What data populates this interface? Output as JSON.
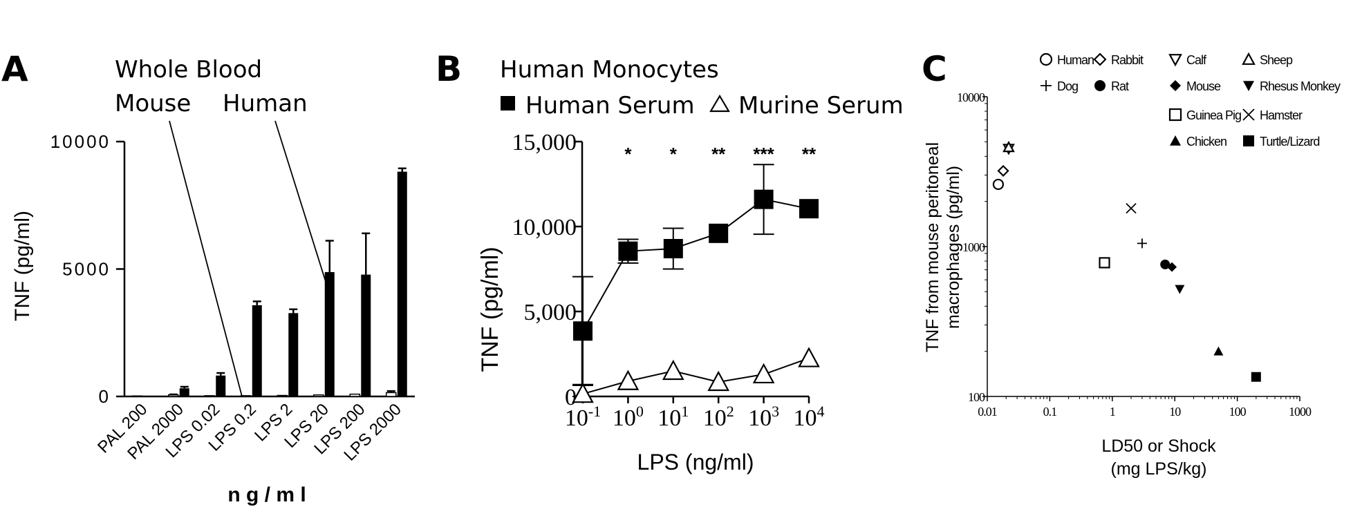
{
  "panels": {
    "A": {
      "letter": "A",
      "group_label": "Whole Blood",
      "mouse_label": "Mouse",
      "human_label": "Human",
      "ylabel": "TNF (pg/ml)",
      "xlabel": "n g / m l"
    },
    "B": {
      "letter": "B",
      "title": "Human Monocytes",
      "legend_human": "Human Serum",
      "legend_murine": "Murine Serum",
      "ylabel": "TNF (pg/ml)",
      "xlabel": "LPS (ng/ml)"
    },
    "C": {
      "letter": "C",
      "ylabel_line1": "TNF from mouse peritoneal",
      "ylabel_line2": "macrophages (pg/ml)",
      "xlabel_line1": "LD50 or Shock",
      "xlabel_line2": "(mg LPS/kg)"
    }
  },
  "chart_data": [
    {
      "type": "bar",
      "panel": "A",
      "categories": [
        "PAL 200",
        "PAL 2000",
        "LPS 0.02",
        "LPS 0.2",
        "LPS 2",
        "LPS 20",
        "LPS 200",
        "LPS 2000"
      ],
      "series": [
        {
          "name": "Mouse",
          "values": [
            20,
            60,
            30,
            30,
            40,
            60,
            90,
            150
          ],
          "errors": [
            0,
            20,
            0,
            0,
            0,
            0,
            0,
            60
          ]
        },
        {
          "name": "Human",
          "values": [
            15,
            320,
            820,
            3580,
            3270,
            4880,
            4780,
            8820
          ],
          "errors": [
            0,
            60,
            100,
            150,
            150,
            1230,
            1620,
            130
          ]
        }
      ],
      "ylabel": "TNF (pg/ml)",
      "xlabel": "n g / m l",
      "ylim": [
        0,
        10000
      ],
      "yticks": [
        "0",
        "5000",
        "10000"
      ]
    },
    {
      "type": "line",
      "panel": "B",
      "x": [
        0.1,
        1,
        10,
        100,
        1000,
        10000
      ],
      "xscale": "log",
      "xtick_labels": [
        {
          "base": "10",
          "exp": "-1"
        },
        {
          "base": "10",
          "exp": "0"
        },
        {
          "base": "10",
          "exp": "1"
        },
        {
          "base": "10",
          "exp": "2"
        },
        {
          "base": "10",
          "exp": "3"
        },
        {
          "base": "10",
          "exp": "4"
        }
      ],
      "series": [
        {
          "name": "Human Serum",
          "marker": "filled-square",
          "values": [
            3850,
            8550,
            8700,
            9600,
            11600,
            11050
          ],
          "errors": [
            3200,
            700,
            1200,
            0,
            2050,
            0
          ]
        },
        {
          "name": "Murine Serum",
          "marker": "open-triangle",
          "values": [
            150,
            900,
            1500,
            850,
            1300,
            2250
          ],
          "errors": [
            550,
            0,
            0,
            0,
            0,
            0
          ]
        }
      ],
      "significance": [
        "",
        "*",
        "*",
        "**",
        "***",
        "**"
      ],
      "ylim": [
        0,
        15000
      ],
      "yticks": [
        "0",
        "5,000",
        "10,000",
        "15,000"
      ],
      "ylabel": "TNF (pg/ml)",
      "xlabel": "LPS (ng/ml)"
    },
    {
      "type": "scatter",
      "panel": "C",
      "xscale": "log",
      "yscale": "log",
      "xlim": [
        0.01,
        1000
      ],
      "ylim": [
        100,
        10000
      ],
      "xticks": [
        "0.01",
        "0.1",
        "1",
        "10",
        "100",
        "1000"
      ],
      "yticks": [
        "100",
        "1000",
        "10000"
      ],
      "points": [
        {
          "name": "Human",
          "marker": "open-circle",
          "x": 0.015,
          "y": 2600
        },
        {
          "name": "Rabbit",
          "marker": "open-diamond",
          "x": 0.018,
          "y": 3200
        },
        {
          "name": "Calf",
          "marker": "open-triangle-down",
          "x": 0.022,
          "y": 4500
        },
        {
          "name": "Sheep",
          "marker": "open-triangle-up",
          "x": 0.022,
          "y": 4600
        },
        {
          "name": "Dog",
          "marker": "plus",
          "x": 3,
          "y": 1050
        },
        {
          "name": "Rat",
          "marker": "filled-circle",
          "x": 7,
          "y": 760
        },
        {
          "name": "Mouse",
          "marker": "filled-diamond",
          "x": 9,
          "y": 730
        },
        {
          "name": "Rhesus Monkey",
          "marker": "filled-triangle-down",
          "x": 12,
          "y": 520
        },
        {
          "name": "Guinea Pig",
          "marker": "open-square",
          "x": 0.75,
          "y": 780
        },
        {
          "name": "Hamster",
          "marker": "x",
          "x": 2,
          "y": 1800
        },
        {
          "name": "Chicken",
          "marker": "filled-triangle-up",
          "x": 50,
          "y": 200
        },
        {
          "name": "Turtle/Lizard",
          "marker": "filled-square",
          "x": 200,
          "y": 135
        }
      ],
      "legend": [
        [
          "Human",
          "Rabbit",
          "Calf",
          "Sheep"
        ],
        [
          "Dog",
          "Rat",
          "Mouse",
          "Rhesus Monkey"
        ],
        [
          "",
          "",
          "Guinea Pig",
          "Hamster"
        ],
        [
          "",
          "",
          "Chicken",
          "Turtle/Lizard"
        ]
      ],
      "xlabel": "LD50 or Shock (mg LPS/kg)",
      "ylabel": "TNF from mouse peritoneal macrophages (pg/ml)"
    }
  ]
}
